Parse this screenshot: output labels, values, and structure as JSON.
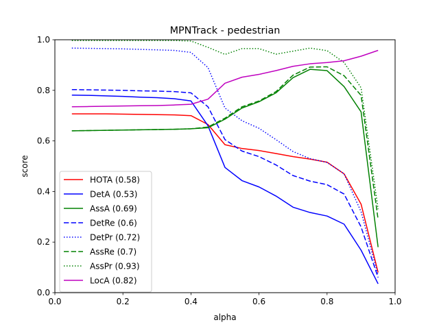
{
  "chart_data": {
    "type": "line",
    "title": "MPNTrack - pedestrian",
    "xlabel": "alpha",
    "ylabel": "score",
    "xlim": [
      0.0,
      1.0
    ],
    "ylim": [
      0.0,
      1.0
    ],
    "x_ticks": [
      "0.0",
      "0.2",
      "0.4",
      "0.6",
      "0.8",
      "1.0"
    ],
    "y_ticks": [
      "0.0",
      "0.2",
      "0.4",
      "0.6",
      "0.8",
      "1.0"
    ],
    "grid": false,
    "legend_position": "lower-left",
    "x": [
      0.05,
      0.1,
      0.15,
      0.2,
      0.25,
      0.3,
      0.35,
      0.4,
      0.45,
      0.5,
      0.55,
      0.6,
      0.65,
      0.7,
      0.75,
      0.8,
      0.85,
      0.9,
      0.95
    ],
    "series": [
      {
        "name": "HOTA (0.58)",
        "color": "#ff0000",
        "dash": "solid",
        "values": [
          0.707,
          0.707,
          0.707,
          0.706,
          0.705,
          0.704,
          0.703,
          0.7,
          0.665,
          0.585,
          0.57,
          0.562,
          0.55,
          0.538,
          0.528,
          0.516,
          0.47,
          0.35,
          0.08
        ]
      },
      {
        "name": "DetA (0.53)",
        "color": "#0000ff",
        "dash": "solid",
        "values": [
          0.781,
          0.78,
          0.778,
          0.776,
          0.773,
          0.771,
          0.767,
          0.758,
          0.66,
          0.495,
          0.443,
          0.418,
          0.382,
          0.338,
          0.317,
          0.303,
          0.271,
          0.168,
          0.035
        ]
      },
      {
        "name": "AssA (0.69)",
        "color": "#008000",
        "dash": "solid",
        "values": [
          0.64,
          0.641,
          0.642,
          0.643,
          0.644,
          0.645,
          0.646,
          0.648,
          0.652,
          0.686,
          0.73,
          0.755,
          0.79,
          0.85,
          0.883,
          0.878,
          0.815,
          0.715,
          0.18
        ]
      },
      {
        "name": "DetRe (0.6)",
        "color": "#0000ff",
        "dash": "dashed",
        "values": [
          0.803,
          0.802,
          0.801,
          0.8,
          0.798,
          0.797,
          0.795,
          0.79,
          0.735,
          0.605,
          0.56,
          0.538,
          0.505,
          0.463,
          0.441,
          0.427,
          0.39,
          0.26,
          0.06
        ]
      },
      {
        "name": "DetPr (0.72)",
        "color": "#0000ff",
        "dash": "dotted",
        "values": [
          0.967,
          0.966,
          0.965,
          0.964,
          0.962,
          0.96,
          0.958,
          0.95,
          0.89,
          0.73,
          0.68,
          0.65,
          0.605,
          0.558,
          0.53,
          0.515,
          0.47,
          0.32,
          0.07
        ]
      },
      {
        "name": "AssRe (0.7)",
        "color": "#008000",
        "dash": "dashed",
        "values": [
          0.64,
          0.641,
          0.642,
          0.643,
          0.644,
          0.645,
          0.646,
          0.648,
          0.655,
          0.69,
          0.735,
          0.758,
          0.795,
          0.86,
          0.892,
          0.893,
          0.858,
          0.78,
          0.29
        ]
      },
      {
        "name": "AssPr (0.93)",
        "color": "#008000",
        "dash": "dotted",
        "values": [
          0.997,
          0.997,
          0.997,
          0.997,
          0.997,
          0.997,
          0.997,
          0.995,
          0.97,
          0.942,
          0.965,
          0.965,
          0.943,
          0.955,
          0.967,
          0.957,
          0.91,
          0.81,
          0.33
        ]
      },
      {
        "name": "LocA (0.82)",
        "color": "#bf00bf",
        "dash": "solid",
        "values": [
          0.735,
          0.736,
          0.737,
          0.738,
          0.739,
          0.74,
          0.742,
          0.745,
          0.765,
          0.828,
          0.852,
          0.863,
          0.878,
          0.895,
          0.905,
          0.91,
          0.917,
          0.935,
          0.958
        ]
      }
    ]
  }
}
